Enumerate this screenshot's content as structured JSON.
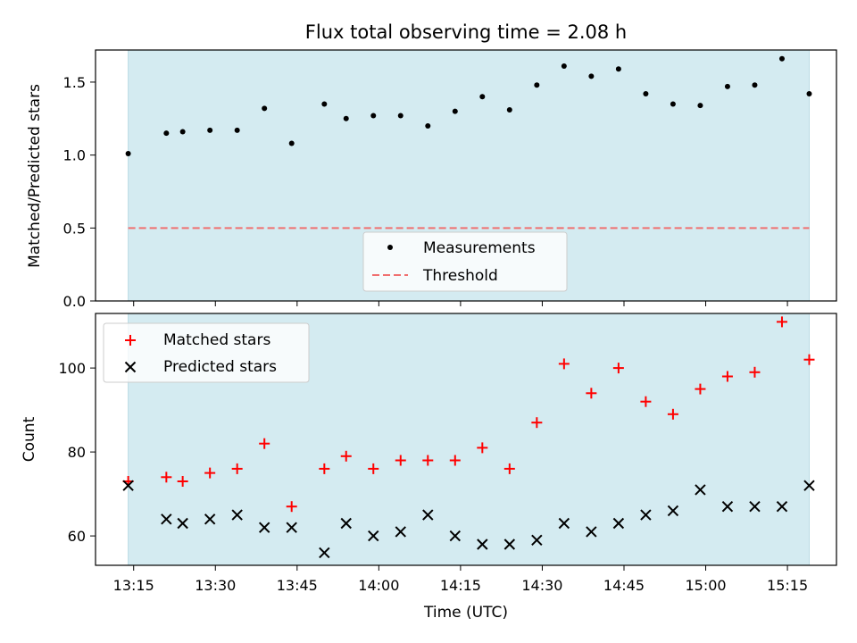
{
  "chart_data": [
    {
      "type": "scatter",
      "title": "Flux total observing time = 2.08 h",
      "xlabel": "",
      "ylabel": "Matched/Predicted stars",
      "ylim": [
        0,
        1.72
      ],
      "yticks": [
        "0.0",
        "0.5",
        "1.0",
        "1.5"
      ],
      "shaded_span": [
        "13:14",
        "15:19"
      ],
      "shade_color": "#d4ebf1",
      "grid": false,
      "legend_position": "lower-center",
      "series": [
        {
          "name": "Measurements",
          "marker": "dot",
          "color": "#000000",
          "x": [
            "13:14",
            "13:21",
            "13:24",
            "13:29",
            "13:34",
            "13:39",
            "13:44",
            "13:50",
            "13:54",
            "13:59",
            "14:04",
            "14:09",
            "14:14",
            "14:19",
            "14:24",
            "14:29",
            "14:34",
            "14:39",
            "14:44",
            "14:49",
            "14:54",
            "14:59",
            "15:04",
            "15:09",
            "15:14",
            "15:19"
          ],
          "values": [
            1.01,
            1.15,
            1.16,
            1.17,
            1.17,
            1.32,
            1.08,
            1.35,
            1.25,
            1.27,
            1.27,
            1.2,
            1.3,
            1.4,
            1.31,
            1.48,
            1.61,
            1.54,
            1.59,
            1.42,
            1.35,
            1.34,
            1.47,
            1.48,
            1.66,
            1.42
          ]
        },
        {
          "name": "Threshold",
          "style": "dashed",
          "color": "#f07070",
          "y": 0.5
        }
      ]
    },
    {
      "type": "scatter",
      "title": "",
      "xlabel": "Time (UTC)",
      "ylabel": "Count",
      "ylim": [
        53,
        113
      ],
      "yticks": [
        "60",
        "80",
        "100"
      ],
      "xticks": [
        "13:15",
        "13:30",
        "13:45",
        "14:00",
        "14:15",
        "14:30",
        "14:45",
        "15:00",
        "15:15"
      ],
      "xlim": [
        "13:08",
        "15:24"
      ],
      "shaded_span": [
        "13:14",
        "15:19"
      ],
      "shade_color": "#d4ebf1",
      "grid": false,
      "legend_position": "upper-left",
      "x": [
        "13:14",
        "13:21",
        "13:24",
        "13:29",
        "13:34",
        "13:39",
        "13:44",
        "13:50",
        "13:54",
        "13:59",
        "14:04",
        "14:09",
        "14:14",
        "14:19",
        "14:24",
        "14:29",
        "14:34",
        "14:39",
        "14:44",
        "14:49",
        "14:54",
        "14:59",
        "15:04",
        "15:09",
        "15:14",
        "15:19"
      ],
      "series": [
        {
          "name": "Matched stars",
          "marker": "plus",
          "color": "#ff0000",
          "values": [
            73,
            74,
            73,
            75,
            76,
            82,
            67,
            76,
            79,
            76,
            78,
            78,
            78,
            81,
            76,
            87,
            101,
            94,
            100,
            92,
            89,
            95,
            98,
            99,
            111,
            102
          ]
        },
        {
          "name": "Predicted stars",
          "marker": "x",
          "color": "#000000",
          "values": [
            72,
            64,
            63,
            64,
            65,
            62,
            62,
            56,
            63,
            60,
            61,
            65,
            60,
            58,
            58,
            59,
            63,
            61,
            63,
            65,
            66,
            71,
            67,
            67,
            67,
            72
          ]
        }
      ]
    }
  ]
}
